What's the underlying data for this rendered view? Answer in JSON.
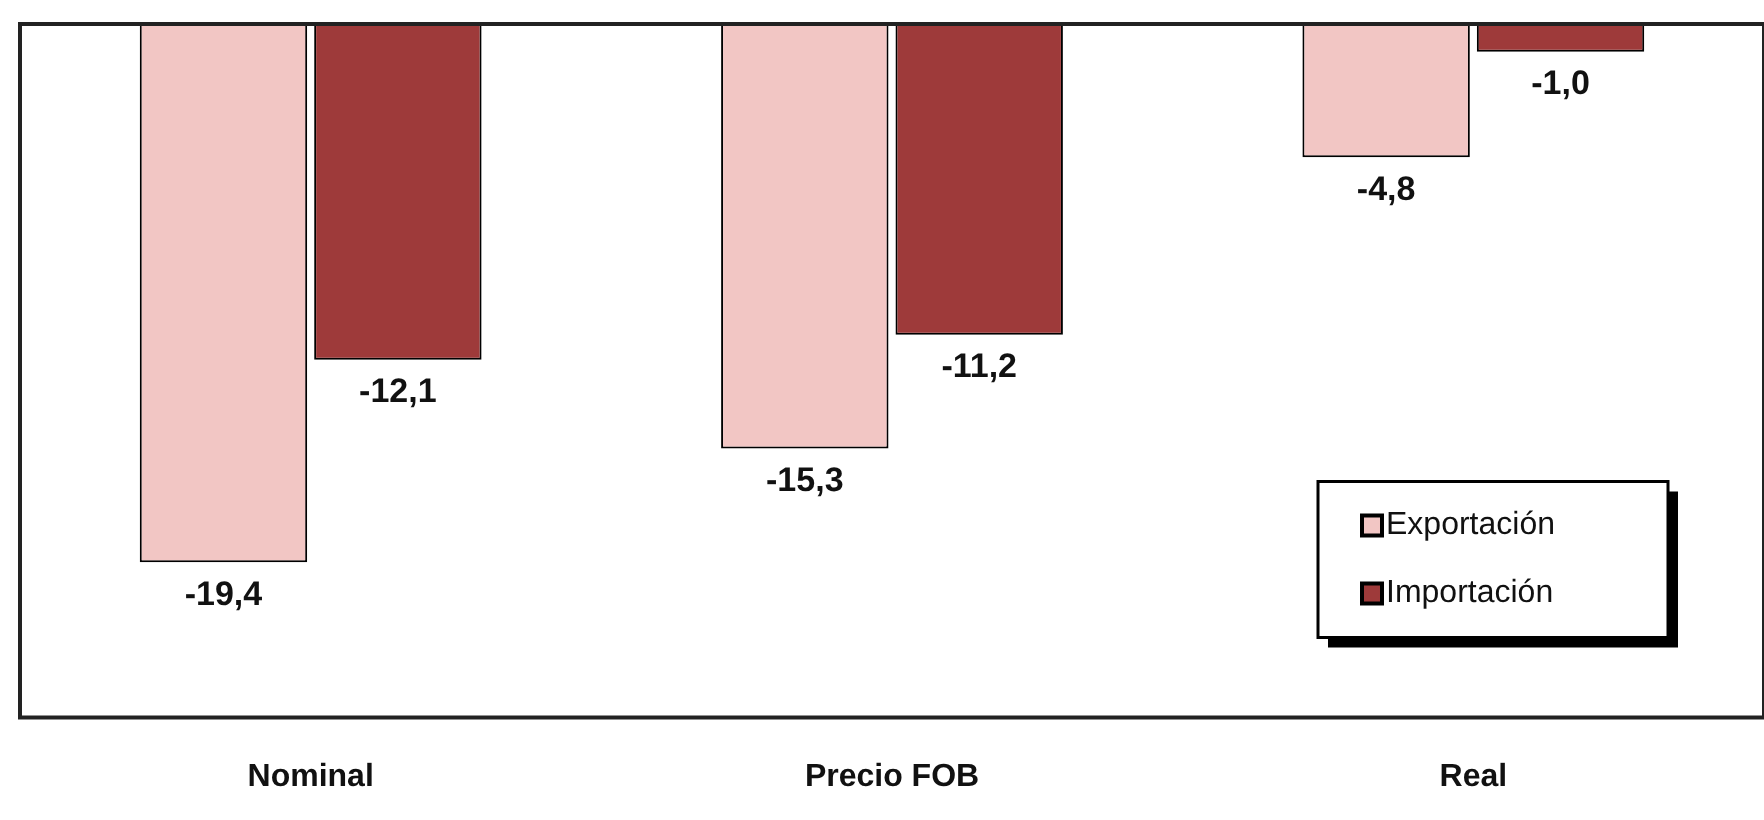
{
  "chart_data": {
    "type": "bar",
    "categories": [
      "Nominal",
      "Precio FOB",
      "Real"
    ],
    "series": [
      {
        "name": "Exportación",
        "color": "#f2c6c4",
        "values": [
          -19.4,
          -15.3,
          -4.8
        ],
        "value_labels": [
          "-19,4",
          "-15,3",
          "-4,8"
        ]
      },
      {
        "name": "Importación",
        "color": "#9e3a3a",
        "values": [
          -12.1,
          -11.2,
          -1.0
        ],
        "value_labels": [
          "-12,1",
          "-11,2",
          "-1,0"
        ]
      }
    ],
    "ylim": [
      -25,
      0
    ],
    "tick_labels": "x",
    "grid": false,
    "legend": "bottom right"
  }
}
